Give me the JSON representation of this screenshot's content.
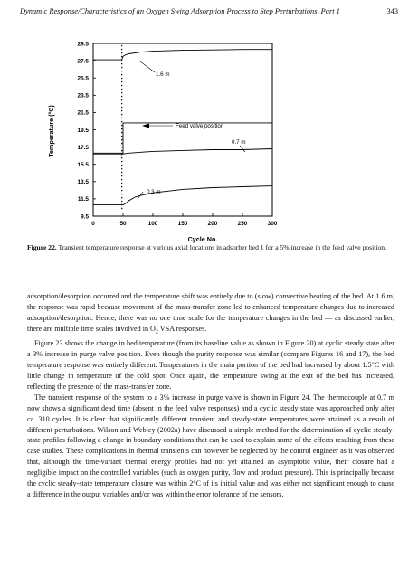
{
  "header": {
    "title": "Dynamic Response/Characteristics of an Oxygen Swing Adsorption Process to Step Perturbations. Part 1",
    "page_number": "343"
  },
  "chart_data": {
    "type": "line",
    "xlabel": "Cycle No.",
    "ylabel": "Temperature (°C)",
    "xlim": [
      0,
      300
    ],
    "ylim": [
      9.5,
      29.5
    ],
    "x_ticks": [
      "0",
      "50",
      "100",
      "150",
      "200",
      "250",
      "300"
    ],
    "y_ticks": [
      "9.5",
      "11.5",
      "13.5",
      "15.5",
      "17.5",
      "19.5",
      "21.5",
      "23.5",
      "25.5",
      "27.5",
      "29.5"
    ],
    "series": [
      {
        "name": "1.6 m",
        "x": [
          0,
          48,
          50,
          55,
          60,
          70,
          80,
          100,
          150,
          200,
          250,
          300
        ],
        "y": [
          27.6,
          27.6,
          28.0,
          28.2,
          28.3,
          28.4,
          28.5,
          28.6,
          28.7,
          28.75,
          28.8,
          28.8
        ]
      },
      {
        "name": "Feed valve position",
        "x": [
          0,
          50,
          50,
          300
        ],
        "y": [
          16.8,
          16.8,
          20.3,
          20.3
        ]
      },
      {
        "name": "0.7 m",
        "x": [
          0,
          50,
          60,
          80,
          100,
          150,
          200,
          250,
          300
        ],
        "y": [
          16.7,
          16.7,
          16.8,
          16.9,
          17.0,
          17.1,
          17.2,
          17.2,
          17.3
        ]
      },
      {
        "name": "0.3 m",
        "x": [
          0,
          50,
          55,
          60,
          70,
          80,
          100,
          125,
          150,
          200,
          250,
          300
        ],
        "y": [
          10.8,
          10.8,
          11.0,
          11.3,
          11.7,
          11.9,
          12.2,
          12.4,
          12.6,
          12.8,
          12.9,
          13.0
        ]
      }
    ],
    "annotations": [
      "1.6 m",
      "Feed valve position",
      "0.7 m",
      "0.3 m"
    ]
  },
  "caption": {
    "label": "Figure 22.",
    "text": "Transient temperature response at various axial locations in adsorber bed 1 for a 5% increase in the feed valve position."
  },
  "body": {
    "p1": "adsorption/desorption occurred and the temperature shift was entirely due to (slow) convective heating of the bed. At 1.6 m, the response was rapid because movement of the mass-transfer zone led to enhanced temperature changes due to increased adsorption/desorption. Hence, there was no one time scale for the temperature changes in the bed — as discussed earlier, there are multiple time scales involved in O",
    "p1_sub": "2",
    "p1_end": " VSA responses.",
    "p2": "Figure 23 shows the change in bed temperature (from its baseline value as shown in Figure 20) at cyclic steady state after a 3% increase in purge valve position. Even though the purity response was similar (compare Figures 16 and 17), the bed temperature response was entirely different. Temperatures in the main portion of the bed had increased by about 1.5°C with little change in temperature of the cold spot. Once again, the temperature swing at the exit of the bed has increased, reflecting the presence of the mass-transfer zone.",
    "p3": "The transient response of the system to a 3% increase in purge valve is shown in Figure 24. The thermocouple at 0.7 m now shows a significant dead time (absent in the feed valve responses) and a cyclic steady state was approached only after ca. 310 cycles. It is clear that significantly different transient and steady-state temperatures were attained as a result of different perturbations. Wilson and Webley (2002a) have discussed a simple method for the determination of cyclic steady-state profiles following a change in boundary conditions that can be used to explain some of the effects resulting from these case studies. These complications in thermal transients can however be neglected by the control engineer as it was observed that, although the time-variant thermal energy profiles had not yet attained an asymptotic value, their closure had a negligible impact on the controlled variables (such as oxygen purity, flow and product pressure). This is principally because the cyclic steady-state temperature closure was within 2°C of its initial value and was either not significant enough to cause a difference in the output variables and/or was within the error tolerance of the sensors."
  }
}
